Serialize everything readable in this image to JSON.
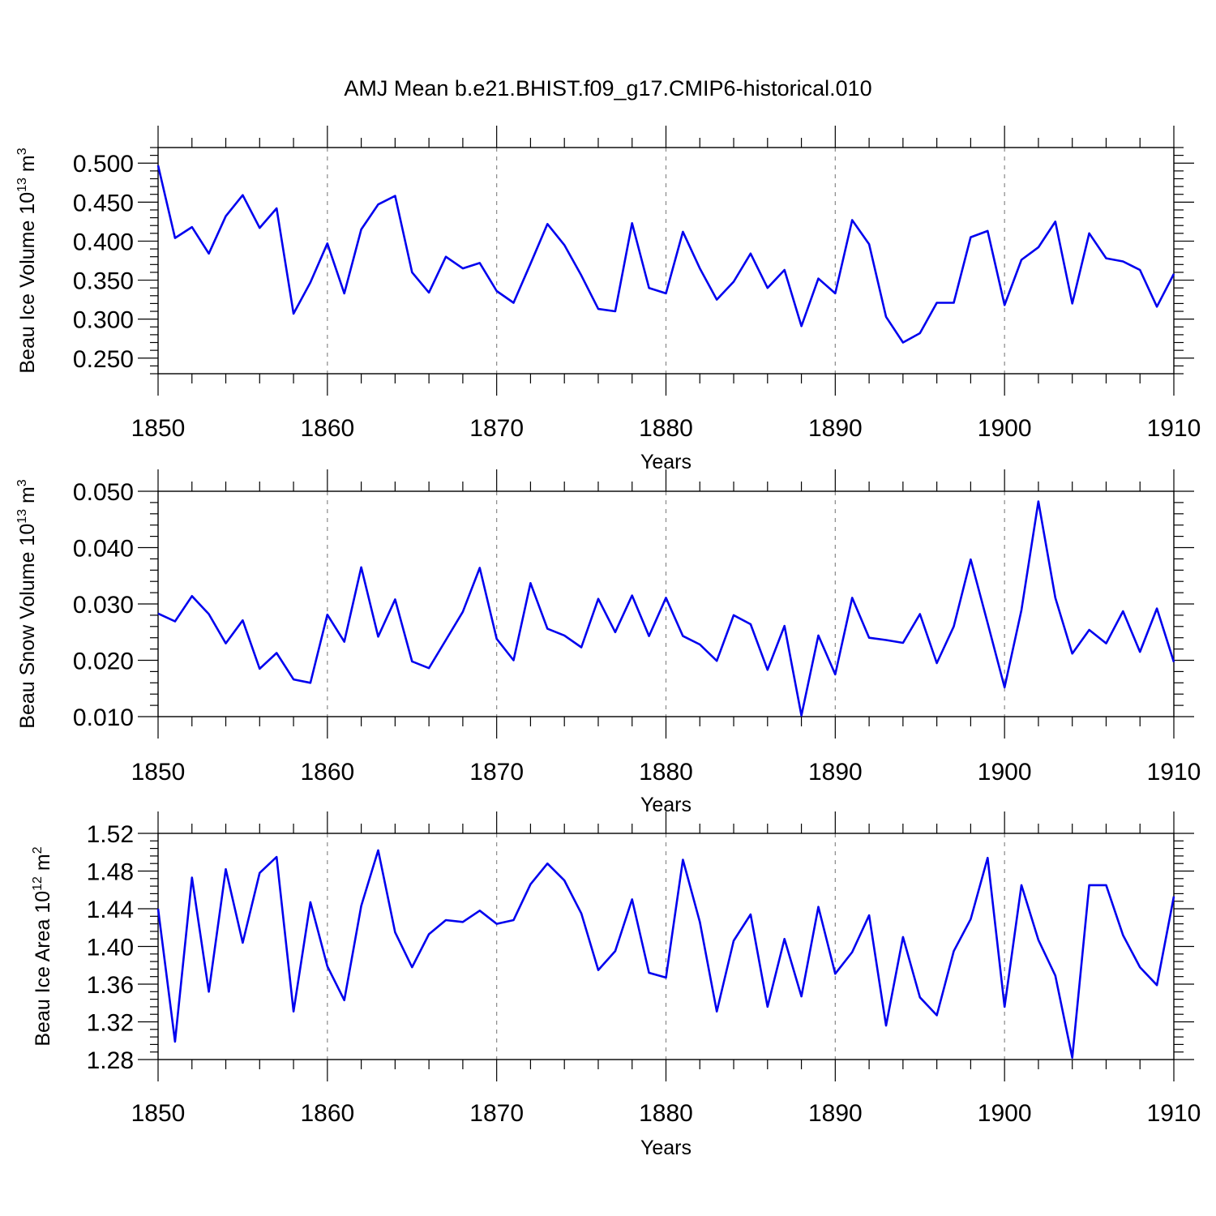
{
  "title": "AMJ Mean b.e21.BHIST.f09_g17.CMIP6-historical.010",
  "colors": {
    "series": "#0000ee",
    "axis": "#000000",
    "grid": "#888888"
  },
  "chart_data": [
    {
      "type": "line",
      "name": "ice-volume",
      "ylabel_main": "Beau Ice Volume 10",
      "ylabel_exp": "13",
      "ylabel_unit": "m",
      "ylabel_unit_exp": "3",
      "xlabel": "Years",
      "xlim": [
        1850,
        1910
      ],
      "ylim": [
        0.23,
        0.52
      ],
      "x_ticks": [
        1850,
        1860,
        1870,
        1880,
        1890,
        1900,
        1910
      ],
      "x_tick_labels": [
        "1850",
        "1860",
        "1870",
        "1880",
        "1890",
        "1900",
        "1910"
      ],
      "y_ticks": [
        0.25,
        0.3,
        0.35,
        0.4,
        0.45,
        0.5
      ],
      "y_tick_labels": [
        "0.250",
        "0.300",
        "0.350",
        "0.400",
        "0.450",
        "0.500"
      ],
      "y_minor_step": 0.01,
      "x_start": 1850,
      "values": [
        0.497,
        0.404,
        0.418,
        0.384,
        0.432,
        0.459,
        0.417,
        0.442,
        0.307,
        0.347,
        0.397,
        0.333,
        0.415,
        0.447,
        0.458,
        0.36,
        0.334,
        0.38,
        0.365,
        0.372,
        0.336,
        0.321,
        0.371,
        0.422,
        0.395,
        0.356,
        0.313,
        0.31,
        0.423,
        0.34,
        0.333,
        0.412,
        0.365,
        0.325,
        0.348,
        0.384,
        0.34,
        0.363,
        0.291,
        0.352,
        0.333,
        0.427,
        0.396,
        0.303,
        0.27,
        0.282,
        0.321,
        0.321,
        0.405,
        0.413,
        0.318,
        0.376,
        0.392,
        0.425,
        0.32,
        0.41,
        0.378,
        0.374,
        0.363,
        0.316,
        0.358
      ]
    },
    {
      "type": "line",
      "name": "snow-volume",
      "ylabel_main": "Beau Snow Volume 10",
      "ylabel_exp": "13",
      "ylabel_unit": "m",
      "ylabel_unit_exp": "3",
      "xlabel": "Years",
      "xlim": [
        1850,
        1910
      ],
      "ylim": [
        0.01,
        0.05
      ],
      "x_ticks": [
        1850,
        1860,
        1870,
        1880,
        1890,
        1900,
        1910
      ],
      "x_tick_labels": [
        "1850",
        "1860",
        "1870",
        "1880",
        "1890",
        "1900",
        "1910"
      ],
      "y_ticks": [
        0.01,
        0.02,
        0.03,
        0.04,
        0.05
      ],
      "y_tick_labels": [
        "0.010",
        "0.020",
        "0.030",
        "0.040",
        "0.050"
      ],
      "y_minor_step": 0.002,
      "x_start": 1850,
      "values": [
        0.0283,
        0.0269,
        0.0314,
        0.0282,
        0.023,
        0.0271,
        0.0185,
        0.0213,
        0.0166,
        0.016,
        0.0281,
        0.0233,
        0.0365,
        0.0242,
        0.0308,
        0.0198,
        0.0186,
        0.0236,
        0.0286,
        0.0364,
        0.0238,
        0.02,
        0.0337,
        0.0256,
        0.0244,
        0.0223,
        0.0309,
        0.025,
        0.0315,
        0.0243,
        0.0311,
        0.0243,
        0.0228,
        0.0199,
        0.028,
        0.0264,
        0.0183,
        0.0261,
        0.0102,
        0.0244,
        0.0175,
        0.0311,
        0.024,
        0.0236,
        0.0231,
        0.0282,
        0.0195,
        0.026,
        0.0379,
        0.0266,
        0.0152,
        0.0289,
        0.0482,
        0.0311,
        0.0212,
        0.0254,
        0.023,
        0.0287,
        0.0215,
        0.0292,
        0.0197
      ]
    },
    {
      "type": "line",
      "name": "ice-area",
      "ylabel_main": "Beau Ice Area 10",
      "ylabel_exp": "12",
      "ylabel_unit": "m",
      "ylabel_unit_exp": "2",
      "xlabel": "Years",
      "xlim": [
        1850,
        1910
      ],
      "ylim": [
        1.28,
        1.52
      ],
      "x_ticks": [
        1850,
        1860,
        1870,
        1880,
        1890,
        1900,
        1910
      ],
      "x_tick_labels": [
        "1850",
        "1860",
        "1870",
        "1880",
        "1890",
        "1900",
        "1910"
      ],
      "y_ticks": [
        1.28,
        1.32,
        1.36,
        1.4,
        1.44,
        1.48,
        1.52
      ],
      "y_tick_labels": [
        "1.28",
        "1.32",
        "1.36",
        "1.40",
        "1.44",
        "1.48",
        "1.52"
      ],
      "y_minor_step": 0.008,
      "x_start": 1850,
      "values": [
        1.44,
        1.299,
        1.473,
        1.352,
        1.482,
        1.404,
        1.478,
        1.495,
        1.331,
        1.447,
        1.379,
        1.343,
        1.443,
        1.502,
        1.415,
        1.378,
        1.413,
        1.428,
        1.426,
        1.438,
        1.424,
        1.428,
        1.466,
        1.488,
        1.47,
        1.435,
        1.375,
        1.395,
        1.45,
        1.372,
        1.367,
        1.492,
        1.426,
        1.331,
        1.406,
        1.434,
        1.336,
        1.408,
        1.347,
        1.442,
        1.371,
        1.394,
        1.433,
        1.316,
        1.41,
        1.346,
        1.327,
        1.395,
        1.429,
        1.494,
        1.336,
        1.465,
        1.407,
        1.369,
        1.282,
        1.465,
        1.465,
        1.412,
        1.378,
        1.359,
        1.453
      ]
    }
  ]
}
